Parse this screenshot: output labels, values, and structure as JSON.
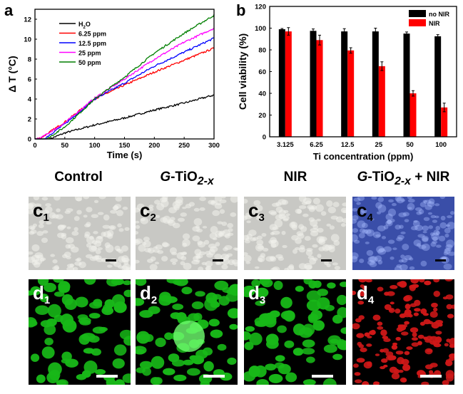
{
  "chart_data": [
    {
      "panel": "a",
      "type": "line",
      "xlabel": "Time (s)",
      "ylabel": "Δ T (°C)",
      "xlim": [
        0,
        300
      ],
      "ylim": [
        0,
        13
      ],
      "xticks": [
        0,
        50,
        100,
        150,
        200,
        250,
        300
      ],
      "yticks": [
        0,
        2,
        4,
        6,
        8,
        10,
        12
      ],
      "legend_position": "top-left",
      "grid": false,
      "series": [
        {
          "name": "H2O",
          "color": "#000000",
          "x": [
            0,
            25,
            50,
            100,
            150,
            200,
            250,
            300
          ],
          "y": [
            0,
            0,
            0.6,
            1.4,
            2.1,
            2.9,
            3.6,
            4.4
          ]
        },
        {
          "name": "6.25 ppm",
          "color": "#ff0000",
          "x": [
            0,
            10,
            50,
            100,
            150,
            200,
            250,
            300
          ],
          "y": [
            0,
            0.1,
            1.7,
            4.0,
            5.4,
            6.7,
            7.9,
            9.1
          ]
        },
        {
          "name": "12.5 ppm",
          "color": "#0000ff",
          "x": [
            0,
            15,
            50,
            100,
            150,
            200,
            250,
            300
          ],
          "y": [
            0,
            0,
            1.5,
            4.0,
            5.6,
            7.3,
            8.7,
            10.1
          ]
        },
        {
          "name": "25 ppm",
          "color": "#ff00ff",
          "x": [
            0,
            10,
            50,
            100,
            150,
            200,
            250,
            300
          ],
          "y": [
            0,
            0.1,
            1.6,
            4.1,
            6.0,
            8.0,
            9.7,
            11.1
          ]
        },
        {
          "name": "50 ppm",
          "color": "#007f00",
          "x": [
            0,
            20,
            50,
            100,
            150,
            200,
            250,
            300
          ],
          "y": [
            0,
            0,
            1.2,
            4.0,
            6.2,
            8.6,
            10.6,
            12.4
          ]
        }
      ]
    },
    {
      "panel": "b",
      "type": "bar",
      "xlabel": "Ti concentration (ppm)",
      "ylabel": "Cell viability (%)",
      "ylim": [
        0,
        120
      ],
      "yticks": [
        0,
        20,
        40,
        60,
        80,
        100,
        120
      ],
      "legend_position": "top-right",
      "grid": false,
      "categories": [
        "3.125",
        "6.25",
        "12.5",
        "25",
        "50",
        "100"
      ],
      "series": [
        {
          "name": "no NIR",
          "color": "#000000",
          "values": [
            99,
            97.5,
            97,
            97,
            95,
            92.5
          ],
          "errors": [
            0.7,
            1.8,
            2.5,
            3,
            1.5,
            1.5
          ]
        },
        {
          "name": "NIR",
          "color": "#ff0000",
          "values": [
            97,
            89,
            79.5,
            65,
            40,
            27
          ],
          "errors": [
            3.5,
            4.5,
            2.5,
            4,
            2.5,
            4
          ]
        }
      ]
    }
  ],
  "panel_labels": {
    "a": "a",
    "b": "b"
  },
  "legend_a_h2o": {
    "h": "H",
    "sub": "2",
    "o": "O"
  },
  "columns": [
    {
      "label": "Control",
      "c_tag": "c",
      "c_sub": "1",
      "d_tag": "d",
      "d_sub": "1"
    },
    {
      "label_pre": "G",
      "label_mid": "-TiO",
      "label_sub": "2-x",
      "label_post": "",
      "c_tag": "c",
      "c_sub": "2",
      "d_tag": "d",
      "d_sub": "2"
    },
    {
      "label": "NIR",
      "c_tag": "c",
      "c_sub": "3",
      "d_tag": "d",
      "d_sub": "3"
    },
    {
      "label_pre": "G",
      "label_mid": "-TiO",
      "label_sub": "2-x",
      "label_post": " + NIR",
      "c_tag": "c",
      "c_sub": "4",
      "d_tag": "d",
      "d_sub": "4"
    }
  ],
  "colors": {
    "phase": "#c8c8c4",
    "phase_blue": "#3a4ea8",
    "green": "#18b818",
    "red": "#d01818"
  }
}
